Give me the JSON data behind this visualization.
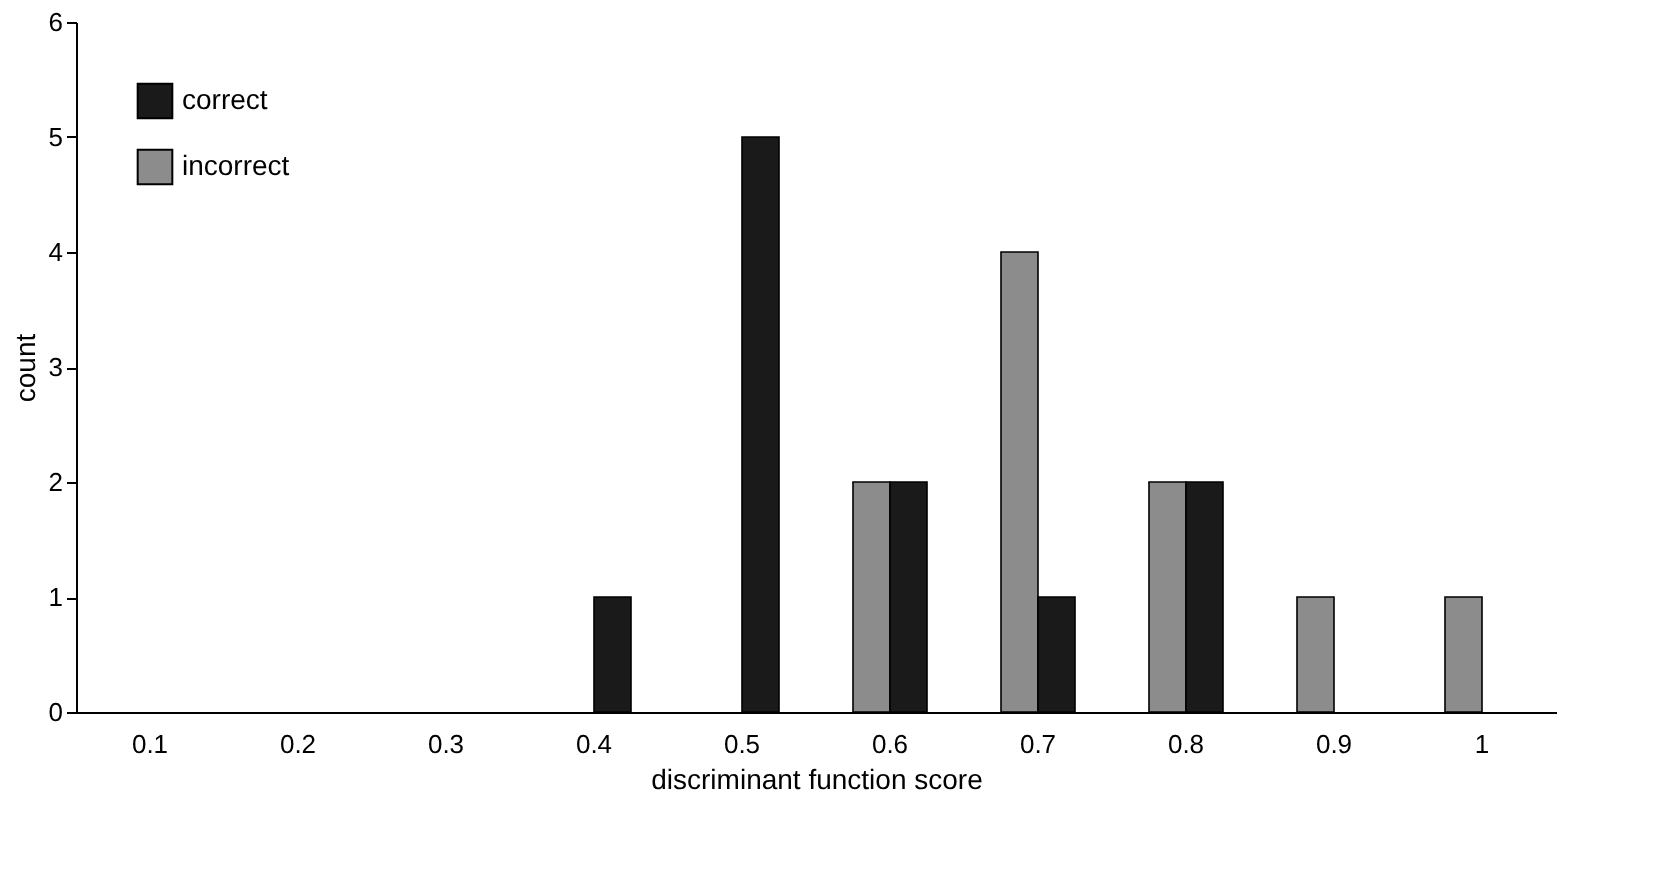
{
  "chart_data": {
    "type": "bar",
    "xlabel": "discriminant function score",
    "ylabel": "count",
    "categories": [
      "0.1",
      "0.2",
      "0.3",
      "0.4",
      "0.5",
      "0.6",
      "0.7",
      "0.8",
      "0.9",
      "1"
    ],
    "series": [
      {
        "name": "incorrect",
        "color": "#8c8c8c",
        "values": [
          0,
          0,
          0,
          0,
          0,
          2,
          4,
          2,
          1,
          1
        ]
      },
      {
        "name": "correct",
        "color": "#1a1a1a",
        "values": [
          0,
          0,
          0,
          1,
          5,
          2,
          1,
          2,
          0,
          0
        ]
      }
    ],
    "ylim": [
      0,
      6
    ],
    "yticks": [
      0,
      1,
      2,
      3,
      4,
      5,
      6
    ],
    "grid": false,
    "legend": "top left"
  }
}
